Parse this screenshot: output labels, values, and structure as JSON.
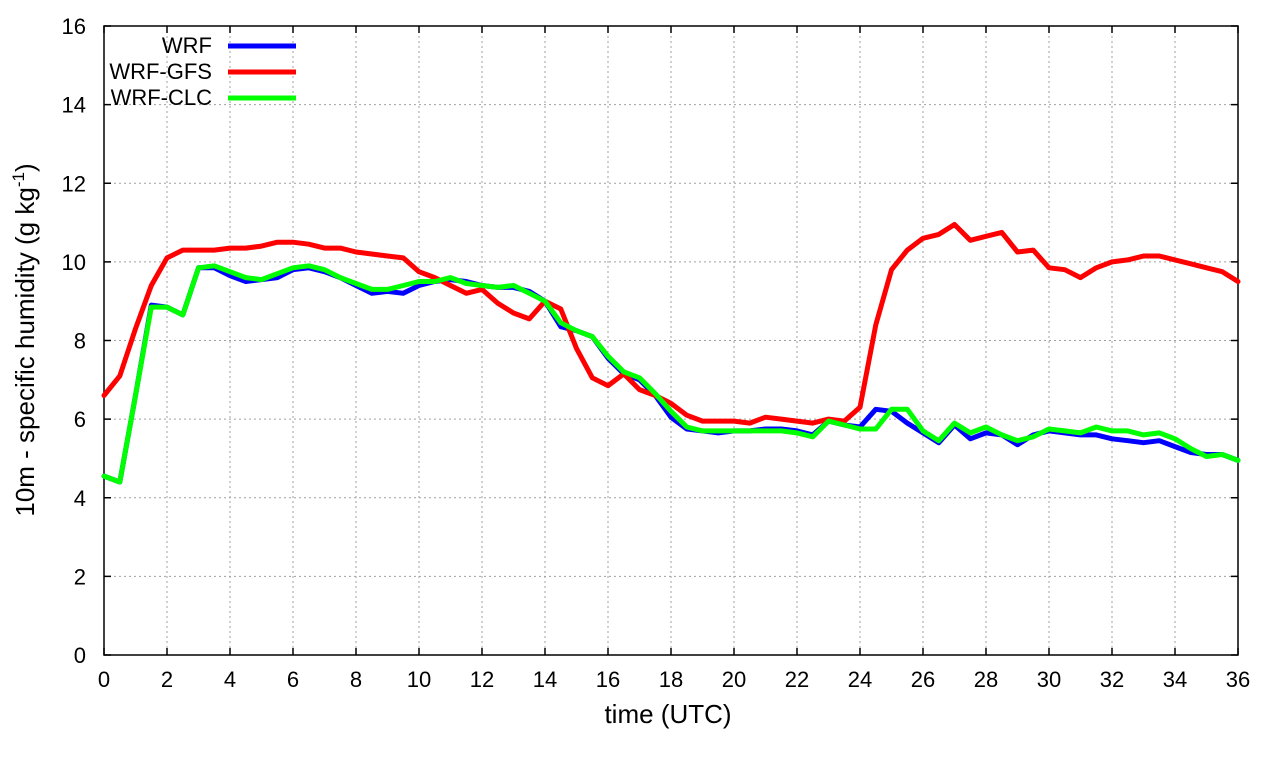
{
  "chart_data": {
    "type": "line",
    "xlabel": "time (UTC)",
    "ylabel": {
      "base": "10m - specific humidity (g kg",
      "sup": "-1",
      "end": ")"
    },
    "xlim": [
      0,
      36
    ],
    "ylim": [
      0,
      16
    ],
    "xticks": [
      0,
      2,
      4,
      6,
      8,
      10,
      12,
      14,
      16,
      18,
      20,
      22,
      24,
      26,
      28,
      30,
      32,
      34,
      36
    ],
    "yticks": [
      0,
      2,
      4,
      6,
      8,
      10,
      12,
      14,
      16
    ],
    "grid": true,
    "legend_position": "top-left",
    "x": [
      0,
      0.5,
      1,
      1.5,
      2,
      2.5,
      3,
      3.5,
      4,
      4.5,
      5,
      5.5,
      6,
      6.5,
      7,
      7.5,
      8,
      8.5,
      9,
      9.5,
      10,
      10.5,
      11,
      11.5,
      12,
      12.5,
      13,
      13.5,
      14,
      14.5,
      15,
      15.5,
      16,
      16.5,
      17,
      17.5,
      18,
      18.5,
      19,
      19.5,
      20,
      20.5,
      21,
      21.5,
      22,
      22.5,
      23,
      23.5,
      24,
      24.5,
      25,
      25.5,
      26,
      26.5,
      27,
      27.5,
      28,
      28.5,
      29,
      29.5,
      30,
      30.5,
      31,
      31.5,
      32,
      32.5,
      33,
      33.5,
      34,
      34.5,
      35,
      35.5,
      36
    ],
    "series": [
      {
        "name": "WRF",
        "color": "#0000ff",
        "values": [
          4.55,
          4.4,
          6.6,
          8.9,
          8.85,
          8.65,
          9.85,
          9.85,
          9.65,
          9.5,
          9.55,
          9.6,
          9.8,
          9.85,
          9.75,
          9.6,
          9.4,
          9.2,
          9.25,
          9.2,
          9.4,
          9.5,
          9.55,
          9.5,
          9.4,
          9.35,
          9.35,
          9.25,
          9.0,
          8.35,
          8.25,
          8.1,
          7.55,
          7.15,
          7.0,
          6.6,
          6.05,
          5.75,
          5.7,
          5.65,
          5.7,
          5.7,
          5.75,
          5.75,
          5.7,
          5.6,
          5.95,
          5.85,
          5.8,
          6.25,
          6.2,
          5.9,
          5.65,
          5.4,
          5.85,
          5.5,
          5.65,
          5.6,
          5.35,
          5.6,
          5.7,
          5.65,
          5.6,
          5.6,
          5.5,
          5.45,
          5.4,
          5.45,
          5.3,
          5.15,
          5.1,
          5.1,
          4.95
        ]
      },
      {
        "name": "WRF-GFS",
        "color": "#ff0000",
        "values": [
          6.6,
          7.1,
          8.3,
          9.4,
          10.1,
          10.3,
          10.3,
          10.3,
          10.35,
          10.35,
          10.4,
          10.5,
          10.5,
          10.45,
          10.35,
          10.35,
          10.25,
          10.2,
          10.15,
          10.1,
          9.75,
          9.6,
          9.4,
          9.2,
          9.3,
          8.95,
          8.7,
          8.55,
          9.0,
          8.8,
          7.8,
          7.05,
          6.85,
          7.15,
          6.75,
          6.6,
          6.4,
          6.1,
          5.95,
          5.95,
          5.95,
          5.9,
          6.05,
          6.0,
          5.95,
          5.9,
          6.0,
          5.95,
          6.3,
          8.4,
          9.8,
          10.3,
          10.6,
          10.7,
          10.95,
          10.55,
          10.65,
          10.75,
          10.25,
          10.3,
          9.85,
          9.8,
          9.6,
          9.85,
          10.0,
          10.05,
          10.15,
          10.15,
          10.05,
          9.95,
          9.85,
          9.75,
          9.5
        ]
      },
      {
        "name": "WRF-CLC",
        "color": "#00ff00",
        "values": [
          4.55,
          4.4,
          6.6,
          8.85,
          8.85,
          8.65,
          9.85,
          9.9,
          9.75,
          9.6,
          9.55,
          9.7,
          9.85,
          9.9,
          9.8,
          9.6,
          9.45,
          9.3,
          9.3,
          9.4,
          9.5,
          9.5,
          9.6,
          9.45,
          9.4,
          9.35,
          9.4,
          9.2,
          9.0,
          8.45,
          8.25,
          8.1,
          7.6,
          7.2,
          7.05,
          6.65,
          6.2,
          5.8,
          5.7,
          5.7,
          5.7,
          5.7,
          5.7,
          5.7,
          5.65,
          5.55,
          5.95,
          5.85,
          5.75,
          5.75,
          6.25,
          6.25,
          5.7,
          5.45,
          5.9,
          5.65,
          5.8,
          5.6,
          5.45,
          5.55,
          5.75,
          5.7,
          5.65,
          5.8,
          5.7,
          5.7,
          5.6,
          5.65,
          5.5,
          5.25,
          5.05,
          5.1,
          4.95
        ]
      }
    ]
  }
}
